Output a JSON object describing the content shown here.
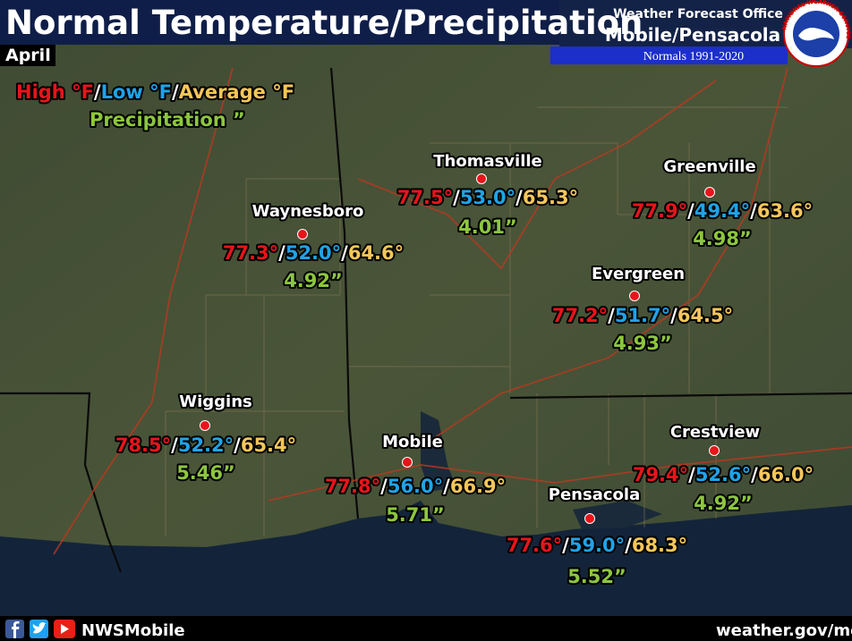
{
  "header": {
    "title": "Normal Temperature/Precipitation",
    "month": "April",
    "office_line1": "Weather Forecast Office",
    "office_line2": "Mobile/Pensacola",
    "normals": "Normals 1991-2020",
    "logo_text": "NATIONAL WEATHER SERVICE"
  },
  "legend": {
    "high": "High °F",
    "low": "Low °F",
    "average": "Average °F",
    "precipitation": "Precipitation ”"
  },
  "separator": "/",
  "colors": {
    "high": "#e8141b",
    "low": "#1fa3e8",
    "average": "#f5c65a",
    "precipitation": "#8dc63f"
  },
  "cities": [
    {
      "name": "Thomasville",
      "high": "77.5°",
      "low": "53.0°",
      "average": "65.3°",
      "precipitation": "4.01”"
    },
    {
      "name": "Greenville",
      "high": "77.9°",
      "low": "49.4°",
      "average": "63.6°",
      "precipitation": "4.98”"
    },
    {
      "name": "Waynesboro",
      "high": "77.3°",
      "low": "52.0°",
      "average": "64.6°",
      "precipitation": "4.92”"
    },
    {
      "name": "Evergreen",
      "high": "77.2°",
      "low": "51.7°",
      "average": "64.5°",
      "precipitation": "4.93”"
    },
    {
      "name": "Wiggins",
      "high": "78.5°",
      "low": "52.2°",
      "average": "65.4°",
      "precipitation": "5.46”"
    },
    {
      "name": "Mobile",
      "high": "77.8°",
      "low": "56.0°",
      "average": "66.9°",
      "precipitation": "5.71”"
    },
    {
      "name": "Crestview",
      "high": "79.4°",
      "low": "52.6°",
      "average": "66.0°",
      "precipitation": "4.92”"
    },
    {
      "name": "Pensacola",
      "high": "77.6°",
      "low": "59.0°",
      "average": "68.3°",
      "precipitation": "5.52”"
    }
  ],
  "footer": {
    "handle": "NWSMobile",
    "website": "weather.gov/mob"
  }
}
